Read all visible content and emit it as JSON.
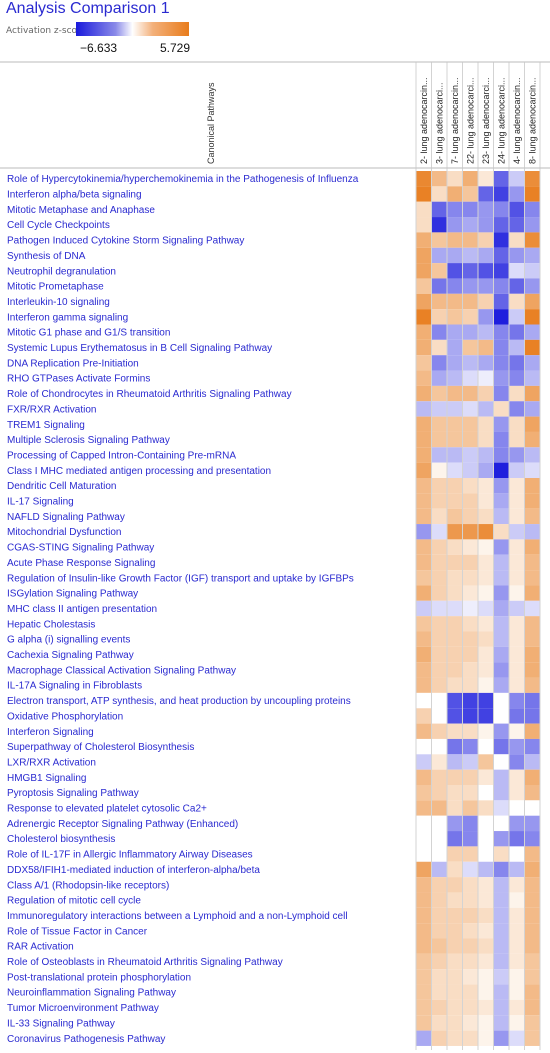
{
  "title": "Analysis Comparison 1",
  "legend": {
    "label": "Activation z-score",
    "min": "−6.633",
    "max": "5.729",
    "min_value": -6.633,
    "max_value": 5.729
  },
  "colors": {
    "negative": "#1a1adc",
    "positive": "#e87c1c",
    "neutral": "#ffffff",
    "label_text": "#2a2ad0"
  },
  "chart_data": {
    "type": "heatmap",
    "title": "Analysis Comparison 1",
    "row_axis_label": "Canonical Pathways",
    "columns": [
      "2- lung adenocarcin...",
      "3- lung adenocarci...",
      "7- lung adenocarcin...",
      "22- lung adenocarci...",
      "23- lung adenocarci...",
      "24- lung adenocarci...",
      "4- lung adenocarcin...",
      "8- lung adenocarcin..."
    ],
    "rows": [
      "Role of Hypercytokinemia/hyperchemokinemia in the Pathogenesis of Influenza",
      "Interferon alpha/beta signaling",
      "Mitotic Metaphase and Anaphase",
      "Cell Cycle Checkpoints",
      "Pathogen Induced Cytokine Storm Signaling Pathway",
      "Synthesis of DNA",
      "Neutrophil degranulation",
      "Mitotic Prometaphase",
      "Interleukin-10 signaling",
      "Interferon gamma signaling",
      "Mitotic G1 phase and G1/S transition",
      "Systemic Lupus Erythematosus in B Cell Signaling Pathway",
      "DNA Replication Pre-Initiation",
      "RHO GTPases Activate Formins",
      "Role of Chondrocytes in Rheumatoid Arthritis Signaling Pathway",
      "FXR/RXR Activation",
      "TREM1 Signaling",
      "Multiple Sclerosis Signaling Pathway",
      "Processing of Capped Intron-Containing Pre-mRNA",
      "Class I MHC mediated antigen processing and presentation",
      "Dendritic Cell Maturation",
      "IL-17 Signaling",
      "NAFLD Signaling Pathway",
      "Mitochondrial Dysfunction",
      "CGAS-STING Signaling Pathway",
      "Acute Phase Response Signaling",
      "Regulation of Insulin-like Growth Factor (IGF) transport and uptake by IGFBPs",
      "ISGylation Signaling Pathway",
      "MHC class II antigen presentation",
      "Hepatic Cholestasis",
      "G alpha (i) signalling events",
      "Cachexia Signaling Pathway",
      "Macrophage Classical Activation Signaling Pathway",
      "IL-17A Signaling in Fibroblasts",
      "Electron transport, ATP synthesis, and heat production by uncoupling proteins",
      "Oxidative Phosphorylation",
      "Interferon Signaling",
      "Superpathway of Cholesterol Biosynthesis",
      "LXR/RXR Activation",
      "HMGB1 Signaling",
      "Pyroptosis Signaling Pathway",
      "Response to elevated platelet cytosolic Ca2+",
      "Adrenergic Receptor Signaling Pathway (Enhanced)",
      "Cholesterol biosynthesis",
      "Role of IL-17F in Allergic Inflammatory Airway Diseases",
      "DDX58/IFIH1-mediated induction of interferon-alpha/beta",
      "Class A/1 (Rhodopsin-like receptors)",
      "Regulation of mitotic cell cycle",
      "Immunoregulatory interactions between a Lymphoid and a non-Lymphoid cell",
      "Role of Tissue Factor in Cancer",
      "RAR Activation",
      "Role of Osteoblasts in Rheumatoid Arthritis Signaling Pathway",
      "Post-translational protein phosphorylation",
      "Neuroinflammation Signaling Pathway",
      "Tumor Microenvironment Pathway",
      "IL-33 Signaling Pathway",
      "Coronavirus Pathogenesis Pathway"
    ],
    "values": [
      [
        5.2,
        3.0,
        1.5,
        3.5,
        1.0,
        -4.5,
        -1.5,
        5.0
      ],
      [
        5.5,
        1.5,
        3.5,
        2.5,
        -4.5,
        -5.5,
        -3.0,
        5.5
      ],
      [
        1.5,
        -4.5,
        -3.5,
        -3.5,
        -3.0,
        -3.5,
        -5.0,
        -3.5
      ],
      [
        1.5,
        -6.0,
        -3.0,
        -2.5,
        -3.0,
        -4.5,
        -4.5,
        -3.0
      ],
      [
        3.5,
        2.5,
        3.0,
        3.0,
        2.0,
        -6.0,
        1.5,
        5.0
      ],
      [
        4.0,
        -2.5,
        -2.5,
        -2.0,
        -2.5,
        -4.5,
        -3.0,
        -2.5
      ],
      [
        4.0,
        2.5,
        -5.0,
        -4.5,
        -5.0,
        -5.5,
        -1.0,
        -1.5
      ],
      [
        2.5,
        -4.0,
        -3.5,
        -3.0,
        -3.0,
        -3.5,
        -4.5,
        -3.0
      ],
      [
        4.0,
        3.0,
        3.0,
        3.0,
        2.0,
        -4.5,
        1.5,
        4.0
      ],
      [
        5.5,
        2.0,
        2.5,
        2.0,
        -3.0,
        -6.5,
        -1.5,
        5.5
      ],
      [
        3.5,
        -3.5,
        -2.5,
        -2.5,
        -2.0,
        -3.5,
        -4.0,
        -2.5
      ],
      [
        3.5,
        1.5,
        -2.5,
        2.5,
        3.0,
        -3.5,
        -2.0,
        5.5
      ],
      [
        2.5,
        -3.5,
        -2.5,
        -2.0,
        -2.5,
        -3.5,
        -4.0,
        -2.5
      ],
      [
        3.0,
        -2.5,
        -2.0,
        -1.0,
        -0.5,
        -3.0,
        -3.5,
        -2.0
      ],
      [
        3.5,
        2.5,
        3.0,
        3.0,
        2.0,
        -3.5,
        1.5,
        4.0
      ],
      [
        -2.0,
        -1.5,
        -1.5,
        -1.0,
        -2.0,
        1.5,
        -3.5,
        -2.5
      ],
      [
        3.5,
        2.5,
        2.5,
        2.5,
        1.5,
        -3.0,
        1.5,
        4.0
      ],
      [
        3.5,
        2.5,
        2.5,
        2.5,
        1.5,
        -3.5,
        1.5,
        3.5
      ],
      [
        3.5,
        -2.0,
        -2.0,
        -1.5,
        -2.0,
        -3.5,
        -3.0,
        -2.0
      ],
      [
        4.0,
        0.5,
        -1.0,
        -1.5,
        -2.5,
        -6.5,
        -1.5,
        -1.0
      ],
      [
        3.0,
        2.0,
        2.0,
        1.5,
        1.0,
        -3.0,
        1.0,
        3.5
      ],
      [
        3.0,
        2.0,
        2.0,
        2.0,
        1.0,
        -2.5,
        1.0,
        3.5
      ],
      [
        3.0,
        1.5,
        2.5,
        2.0,
        1.5,
        -2.0,
        1.0,
        3.0
      ],
      [
        -3.0,
        -1.0,
        4.5,
        4.5,
        5.0,
        1.5,
        -1.5,
        -2.0
      ],
      [
        3.0,
        2.0,
        1.5,
        1.0,
        0.5,
        -3.0,
        1.0,
        3.5
      ],
      [
        3.0,
        2.0,
        2.0,
        2.0,
        1.0,
        -2.0,
        1.0,
        3.0
      ],
      [
        2.5,
        2.0,
        1.5,
        1.5,
        1.0,
        -2.0,
        1.0,
        3.0
      ],
      [
        3.5,
        2.0,
        1.5,
        1.0,
        0.5,
        -3.0,
        0.5,
        3.5
      ],
      [
        -1.5,
        -1.0,
        -1.0,
        -0.5,
        -1.0,
        -2.5,
        -1.5,
        -1.0
      ],
      [
        2.5,
        2.0,
        2.0,
        1.5,
        1.0,
        -2.0,
        1.0,
        3.0
      ],
      [
        3.0,
        2.0,
        2.0,
        2.0,
        1.5,
        -2.0,
        1.0,
        3.0
      ],
      [
        3.5,
        2.0,
        2.0,
        2.0,
        1.0,
        -2.5,
        1.0,
        3.5
      ],
      [
        3.0,
        2.0,
        2.0,
        1.5,
        1.0,
        -3.0,
        1.0,
        3.5
      ],
      [
        3.0,
        2.0,
        1.5,
        1.5,
        0.5,
        -2.5,
        1.0,
        3.0
      ],
      [
        0,
        0,
        -5.0,
        -5.5,
        -5.5,
        0,
        -3.5,
        -4.0
      ],
      [
        2.0,
        0,
        -5.0,
        -5.5,
        -5.5,
        0,
        -4.0,
        -4.0
      ],
      [
        3.0,
        2.0,
        1.5,
        1.5,
        0.5,
        -3.0,
        0.5,
        3.5
      ],
      [
        0,
        0,
        -4.0,
        -3.5,
        0,
        -4.0,
        -3.0,
        -3.5
      ],
      [
        -1.5,
        1.0,
        -2.0,
        -1.5,
        2.5,
        0,
        -3.5,
        -2.0
      ],
      [
        3.0,
        2.0,
        2.0,
        2.0,
        1.0,
        -2.0,
        1.0,
        3.5
      ],
      [
        2.5,
        2.0,
        1.5,
        1.5,
        0,
        -2.0,
        1.0,
        3.0
      ],
      [
        3.0,
        3.0,
        1.5,
        2.5,
        1.5,
        -1.0,
        0,
        0
      ],
      [
        0,
        0,
        -3.0,
        -3.5,
        0,
        0,
        -3.0,
        -3.0
      ],
      [
        0,
        0,
        -4.0,
        -3.5,
        0,
        -3.0,
        -4.0,
        -3.5
      ],
      [
        0,
        0,
        2.0,
        2.0,
        0,
        1.5,
        0,
        3.0
      ],
      [
        4.0,
        -2.0,
        1.5,
        -1.0,
        -2.0,
        -3.5,
        -2.0,
        3.5
      ],
      [
        3.0,
        2.0,
        2.0,
        1.5,
        1.0,
        -2.0,
        1.0,
        3.0
      ],
      [
        3.0,
        2.0,
        1.5,
        1.5,
        1.0,
        -2.0,
        0.5,
        3.0
      ],
      [
        3.0,
        2.0,
        2.0,
        2.0,
        1.5,
        -2.0,
        1.0,
        3.0
      ],
      [
        3.0,
        2.0,
        2.0,
        1.5,
        1.0,
        -2.0,
        1.0,
        3.0
      ],
      [
        3.0,
        2.5,
        2.0,
        2.0,
        1.5,
        -2.0,
        1.0,
        3.0
      ],
      [
        2.5,
        2.0,
        1.5,
        1.5,
        1.0,
        -2.0,
        1.0,
        2.5
      ],
      [
        2.5,
        1.5,
        1.5,
        1.0,
        0.5,
        -1.5,
        0.5,
        2.5
      ],
      [
        2.5,
        1.5,
        1.5,
        1.5,
        0.5,
        -2.0,
        0.5,
        3.0
      ],
      [
        2.5,
        2.0,
        1.5,
        1.5,
        1.0,
        -2.0,
        1.0,
        3.0
      ],
      [
        2.5,
        1.5,
        1.5,
        1.0,
        0.5,
        -2.0,
        0.5,
        2.5
      ],
      [
        -2.5,
        2.0,
        1.5,
        1.5,
        0.5,
        -3.0,
        -1.0,
        2.5
      ]
    ]
  }
}
